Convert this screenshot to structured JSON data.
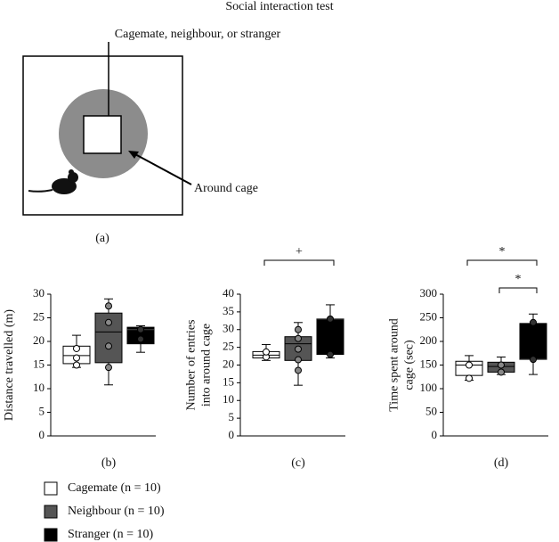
{
  "title": "Social interaction test",
  "diagram": {
    "cage_label": "Cagemate, neighbour, or stranger",
    "around_label": "Around cage",
    "panel": "(a)"
  },
  "chart_data": [
    {
      "type": "box",
      "panel": "(b)",
      "ylabel": [
        "Distance travelled (m)"
      ],
      "ylim": [
        0,
        30
      ],
      "yticks": [
        0,
        5,
        10,
        15,
        20,
        25,
        30
      ],
      "series": [
        {
          "name": "Cagemate (n = 10)",
          "color": "#ffffff",
          "point_color": "#ffffff",
          "whislo": 14.5,
          "q1": 15.3,
          "med": 17,
          "q3": 19,
          "whishi": 21.3,
          "points": [
            15,
            16.5,
            18.5
          ]
        },
        {
          "name": "Neighbour (n = 10)",
          "color": "#555555",
          "point_color": "#888888",
          "whislo": 10.8,
          "q1": 15.5,
          "med": 22,
          "q3": 26,
          "whishi": 29,
          "points": [
            14.5,
            19,
            24,
            27.5
          ]
        },
        {
          "name": "Stranger (n = 10)",
          "color": "#000000",
          "point_color": "#333333",
          "whislo": 17.7,
          "q1": 19.5,
          "med": 22.5,
          "q3": 23,
          "whishi": 23.3,
          "points": [
            20.5,
            22.5
          ]
        }
      ],
      "annotations": []
    },
    {
      "type": "box",
      "panel": "(c)",
      "ylabel": [
        "Number of entries",
        "into around cage"
      ],
      "ylim": [
        0,
        40
      ],
      "yticks": [
        0,
        5,
        10,
        15,
        20,
        25,
        30,
        35,
        40
      ],
      "series": [
        {
          "color": "#ffffff",
          "point_color": "#ffffff",
          "whislo": 21.3,
          "q1": 22,
          "med": 22.8,
          "q3": 23.8,
          "whishi": 25.8,
          "points": [
            22.3,
            23.7
          ]
        },
        {
          "color": "#555555",
          "point_color": "#888888",
          "whislo": 14.3,
          "q1": 21.3,
          "med": 26,
          "q3": 28,
          "whishi": 32,
          "points": [
            18.5,
            21.5,
            24.5,
            27.5,
            30
          ]
        },
        {
          "color": "#000000",
          "point_color": "#333333",
          "whislo": 22,
          "q1": 23,
          "med": 33,
          "q3": 33,
          "whishi": 37,
          "points": [
            23,
            33
          ]
        }
      ],
      "annotations": [
        "+"
      ]
    },
    {
      "type": "box",
      "panel": "(d)",
      "ylabel": [
        "Time spent around",
        "cage (sec)"
      ],
      "ylim": [
        0,
        300
      ],
      "yticks": [
        0,
        50,
        100,
        150,
        200,
        250,
        300
      ],
      "series": [
        {
          "color": "#ffffff",
          "point_color": "#ffffff",
          "whislo": 118,
          "q1": 128,
          "med": 150,
          "q3": 158,
          "whishi": 170,
          "points": [
            122,
            150
          ]
        },
        {
          "color": "#555555",
          "point_color": "#888888",
          "whislo": 130,
          "q1": 135,
          "med": 147,
          "q3": 156,
          "whishi": 167,
          "points": [
            135,
            150
          ]
        },
        {
          "color": "#000000",
          "point_color": "#333333",
          "whislo": 130,
          "q1": 162,
          "med": 162,
          "q3": 238,
          "whishi": 258,
          "points": [
            162,
            240
          ]
        }
      ],
      "annotations": [
        "*",
        "*"
      ]
    }
  ]
}
